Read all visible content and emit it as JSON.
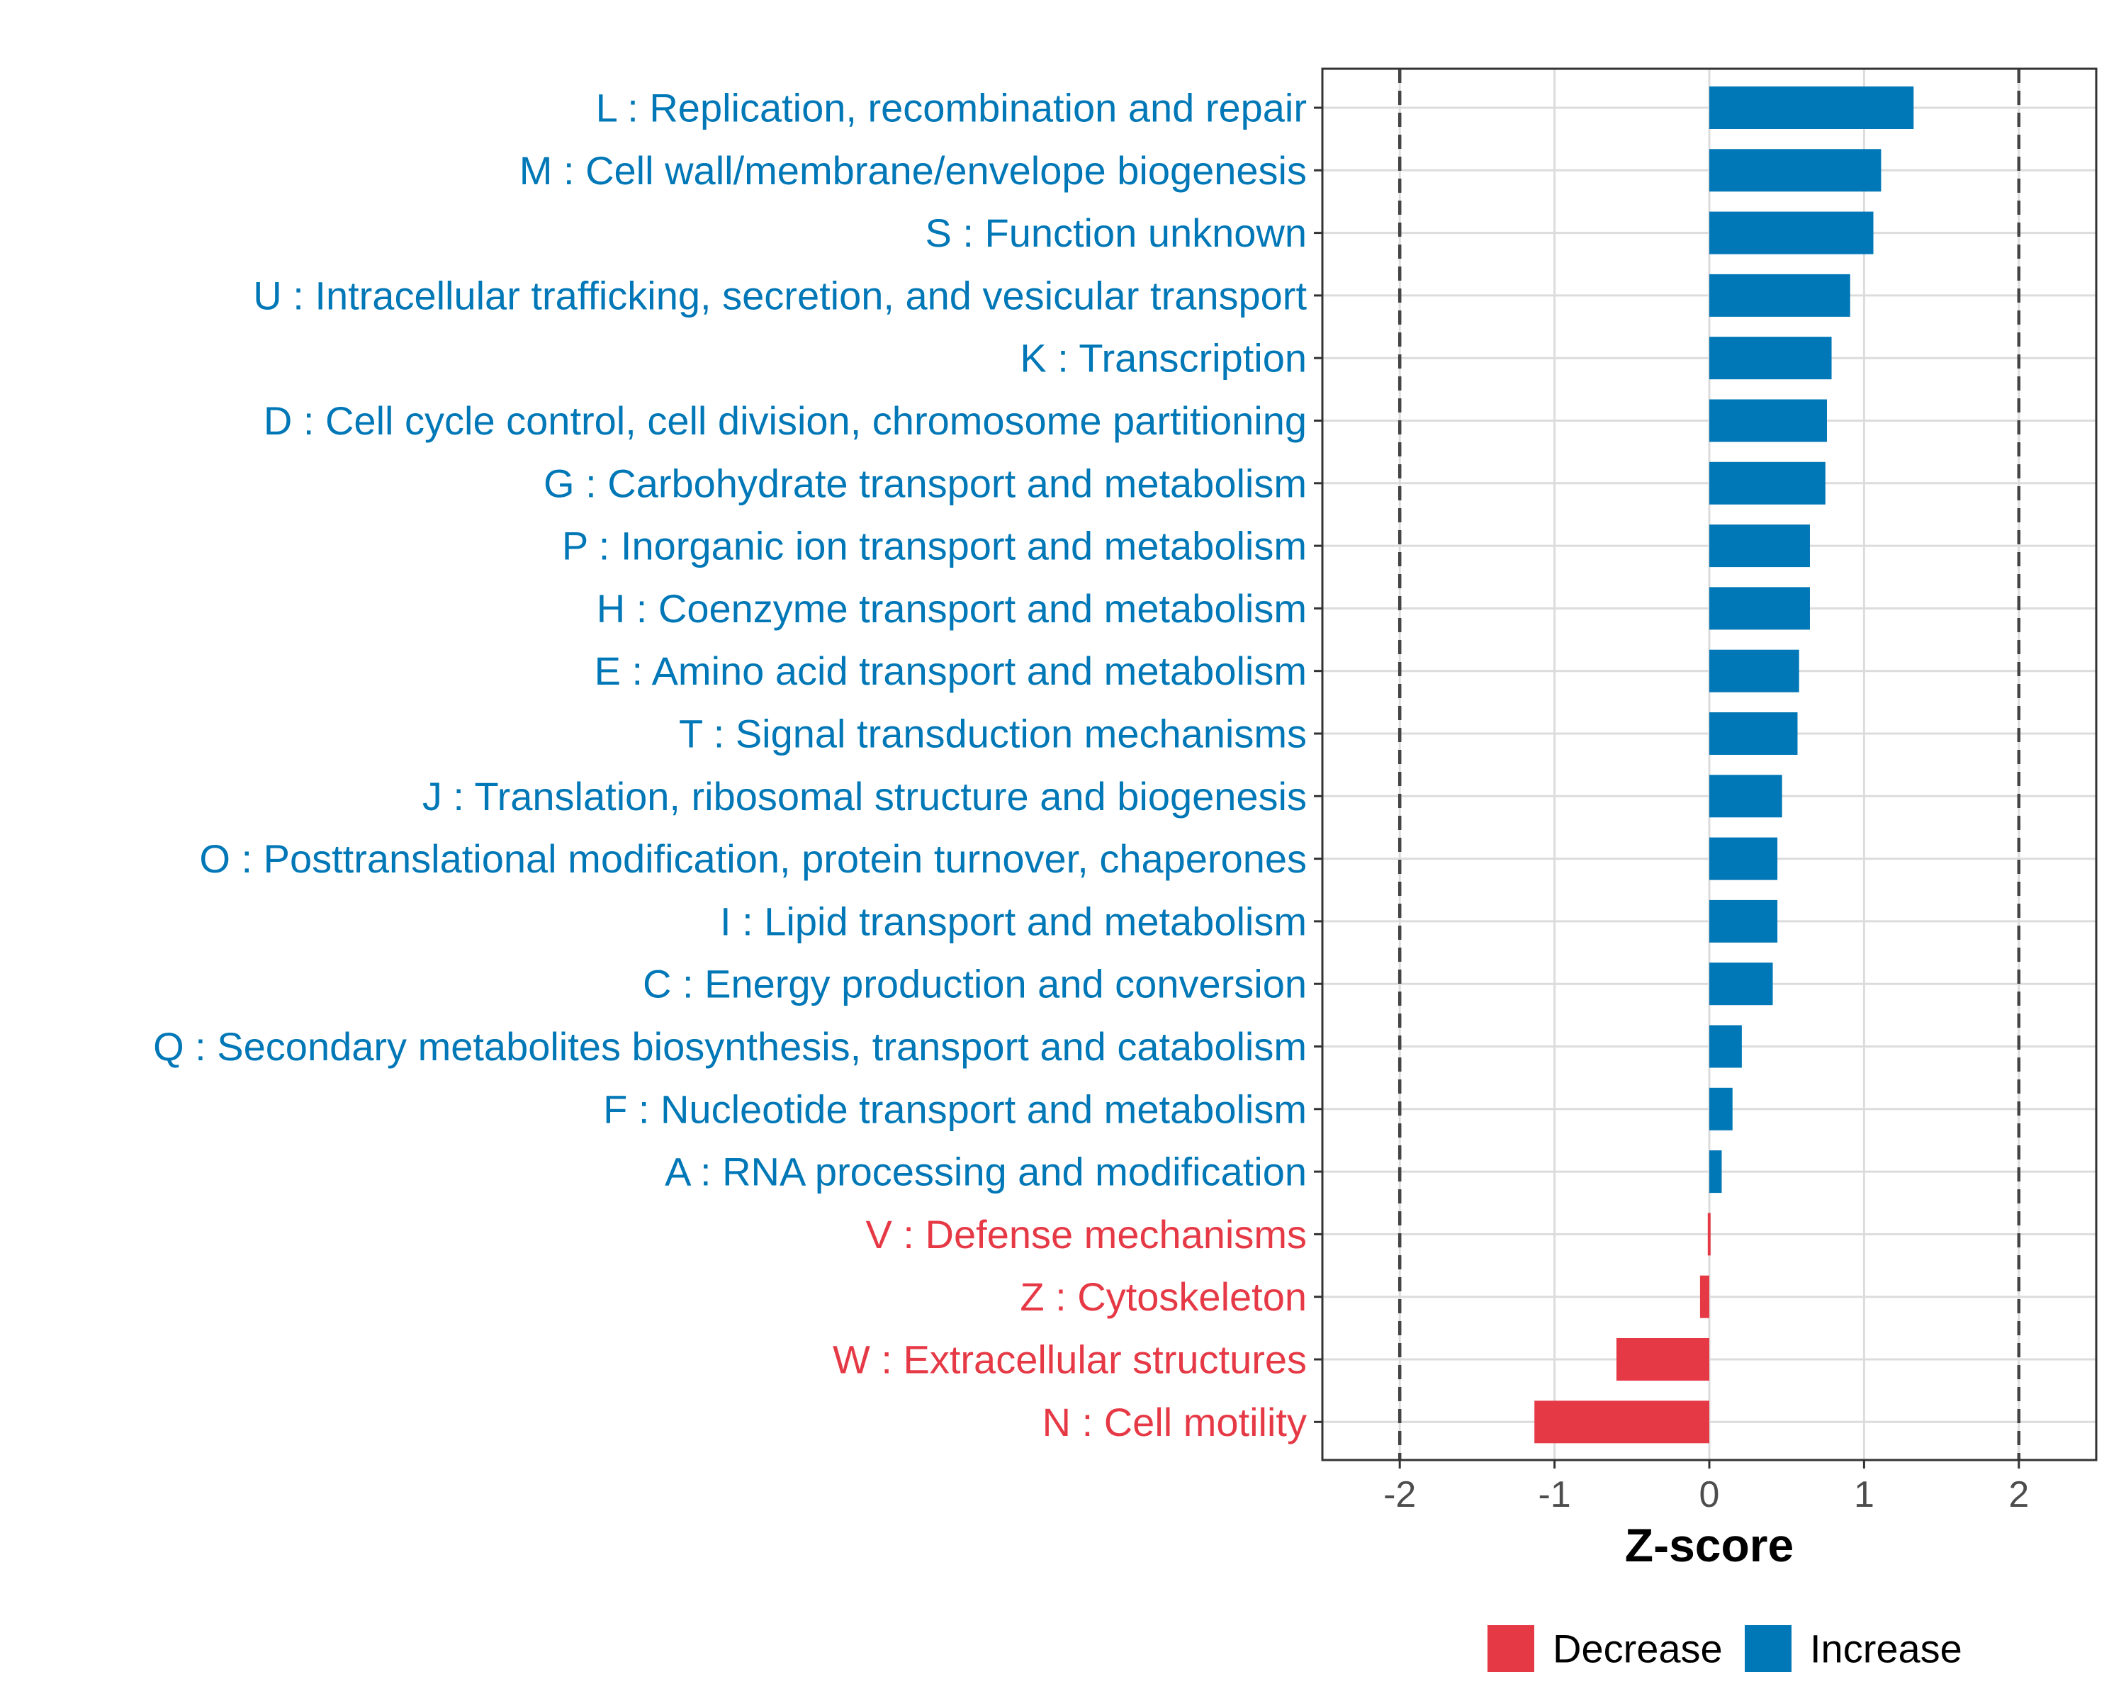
{
  "chart_data": {
    "type": "bar",
    "orientation": "horizontal",
    "title": "",
    "xlabel": "Z-score",
    "ylabel": "",
    "xlim": [
      -2.5,
      2.5
    ],
    "xticks": [
      -2,
      -1,
      0,
      1,
      2
    ],
    "xtick_labels": [
      "-2",
      "-1",
      "0",
      "1",
      "2"
    ],
    "reference_lines": [
      -2,
      2
    ],
    "grid": true,
    "legend_position": "bottom",
    "colors": {
      "Decrease": "#E63946",
      "Increase": "#0077B6"
    },
    "legend": [
      {
        "label": "Decrease",
        "color": "#E63946"
      },
      {
        "label": "Increase",
        "color": "#0077B6"
      }
    ],
    "categories": [
      "L : Replication, recombination and repair",
      "M : Cell wall/membrane/envelope biogenesis",
      "S : Function unknown",
      "U : Intracellular trafficking, secretion, and vesicular transport",
      "K : Transcription",
      "D : Cell cycle control, cell division, chromosome partitioning",
      "G : Carbohydrate transport and metabolism",
      "P : Inorganic ion transport and metabolism",
      "H : Coenzyme transport and metabolism",
      "E : Amino acid transport and metabolism",
      "T : Signal transduction mechanisms",
      "J : Translation, ribosomal structure and biogenesis",
      "O : Posttranslational modification, protein turnover, chaperones",
      "I : Lipid transport and metabolism",
      "C : Energy production and conversion",
      "Q : Secondary metabolites biosynthesis, transport and catabolism",
      "F : Nucleotide transport and metabolism",
      "A : RNA processing and modification",
      "V : Defense mechanisms",
      "Z : Cytoskeleton",
      "W : Extracellular structures",
      "N : Cell motility"
    ],
    "values": [
      1.32,
      1.11,
      1.06,
      0.91,
      0.79,
      0.76,
      0.75,
      0.65,
      0.65,
      0.58,
      0.57,
      0.47,
      0.44,
      0.44,
      0.41,
      0.21,
      0.15,
      0.08,
      -0.01,
      -0.06,
      -0.6,
      -1.13
    ],
    "groups": [
      "Increase",
      "Increase",
      "Increase",
      "Increase",
      "Increase",
      "Increase",
      "Increase",
      "Increase",
      "Increase",
      "Increase",
      "Increase",
      "Increase",
      "Increase",
      "Increase",
      "Increase",
      "Increase",
      "Increase",
      "Increase",
      "Decrease",
      "Decrease",
      "Decrease",
      "Decrease"
    ]
  }
}
